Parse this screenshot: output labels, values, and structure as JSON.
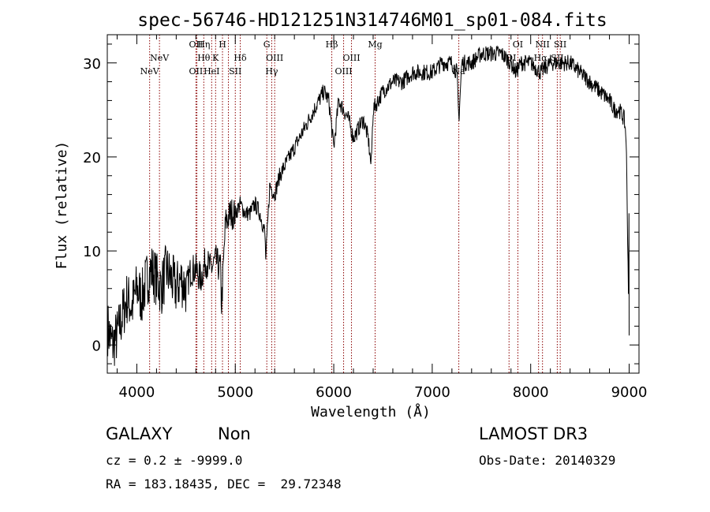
{
  "chart_data": {
    "type": "line",
    "title": "spec-56746-HD121251N314746M01_sp01-084.fits",
    "xlabel": "Wavelength (Å)",
    "ylabel": "Flux (relative)",
    "xlim": [
      3700,
      9100
    ],
    "ylim": [
      -3,
      33
    ],
    "x_ticks": [
      4000,
      5000,
      6000,
      7000,
      8000,
      9000
    ],
    "y_ticks": [
      0,
      10,
      20,
      30
    ],
    "line_color": "#000000",
    "marker_color": "#8b0000",
    "spectrum": {
      "x": [
        3700,
        3750,
        3800,
        3850,
        3900,
        3950,
        4000,
        4050,
        4100,
        4150,
        4200,
        4250,
        4300,
        4350,
        4400,
        4450,
        4500,
        4550,
        4600,
        4650,
        4700,
        4750,
        4800,
        4850,
        4860,
        4900,
        4950,
        5000,
        5050,
        5100,
        5150,
        5200,
        5250,
        5300,
        5310,
        5350,
        5400,
        5450,
        5500,
        5550,
        5600,
        5650,
        5700,
        5750,
        5800,
        5850,
        5900,
        5950,
        6000,
        6050,
        6100,
        6150,
        6200,
        6250,
        6300,
        6350,
        6380,
        6400,
        6450,
        6500,
        6600,
        6700,
        6800,
        6900,
        7000,
        7100,
        7200,
        7250,
        7270,
        7300,
        7400,
        7500,
        7600,
        7700,
        7800,
        7850,
        7900,
        8000,
        8100,
        8200,
        8300,
        8400,
        8500,
        8600,
        8700,
        8800,
        8850,
        8900,
        8950,
        8970,
        9000
      ],
      "y": [
        2,
        0,
        1,
        3,
        5,
        4,
        6,
        5,
        7,
        8,
        7,
        6,
        8,
        7,
        6,
        7,
        6,
        8,
        8,
        7,
        9,
        8,
        9,
        8,
        4,
        13,
        14,
        14,
        15,
        14,
        14,
        15,
        14,
        12,
        9,
        17,
        16,
        18,
        19,
        20,
        21,
        22,
        23,
        24,
        25,
        26,
        27,
        26,
        21,
        26,
        25,
        24,
        22,
        23,
        24,
        22,
        19,
        25,
        26,
        27,
        28,
        28,
        29,
        29,
        29,
        30,
        30,
        29,
        24,
        30,
        30,
        31,
        31,
        31,
        30,
        29,
        30,
        30,
        29,
        30,
        30,
        30,
        29,
        28,
        27,
        26,
        25,
        25,
        24,
        22,
        1
      ]
    },
    "lines": [
      {
        "label": "NeV",
        "x": 4130,
        "row": 2
      },
      {
        "label": "NeV",
        "x": 4230,
        "row": 1
      },
      {
        "label": "OII",
        "x": 4600,
        "row": 0
      },
      {
        "label": "Hη",
        "x": 4680,
        "row": 0
      },
      {
        "label": "H",
        "x": 4870,
        "row": 0
      },
      {
        "label": "Hθ",
        "x": 4680,
        "row": 1
      },
      {
        "label": "K",
        "x": 4800,
        "row": 1
      },
      {
        "label": "Hδ",
        "x": 5050,
        "row": 1
      },
      {
        "label": "OII",
        "x": 4600,
        "row": 2
      },
      {
        "label": "HeI",
        "x": 4760,
        "row": 2
      },
      {
        "label": "SII",
        "x": 5000,
        "row": 2
      },
      {
        "label": "G",
        "x": 5320,
        "row": 0
      },
      {
        "label": "OIII",
        "x": 5400,
        "row": 1
      },
      {
        "label": "Hγ",
        "x": 5370,
        "row": 2
      },
      {
        "label": "Hβ",
        "x": 5980,
        "row": 0
      },
      {
        "label": "Mg",
        "x": 6420,
        "row": 0
      },
      {
        "label": "OIII",
        "x": 6180,
        "row": 1
      },
      {
        "label": "OIII",
        "x": 6100,
        "row": 2
      },
      {
        "label": "Na",
        "x": 7270,
        "row": 2
      },
      {
        "label": "OI",
        "x": 7870,
        "row": 0
      },
      {
        "label": "NII",
        "x": 8120,
        "row": 0
      },
      {
        "label": "SII",
        "x": 8300,
        "row": 0
      },
      {
        "label": "OI",
        "x": 7800,
        "row": 1
      },
      {
        "label": "Hα",
        "x": 8100,
        "row": 1
      },
      {
        "label": "SII",
        "x": 8270,
        "row": 1
      }
    ],
    "marker_x": [
      4130,
      4230,
      4600,
      4610,
      4680,
      4760,
      4800,
      4870,
      4930,
      5000,
      5050,
      5320,
      5370,
      5400,
      5980,
      6100,
      6180,
      6420,
      7270,
      7780,
      7870,
      8080,
      8120,
      8270,
      8300
    ]
  },
  "info": {
    "object_class": "GALAXY",
    "subclass": "Non",
    "survey": "LAMOST DR3",
    "cz": "cz = 0.2 ± -9999.0",
    "obs_date": "Obs-Date: 20140329",
    "radec": "RA = 183.18435, DEC =  29.72348"
  }
}
